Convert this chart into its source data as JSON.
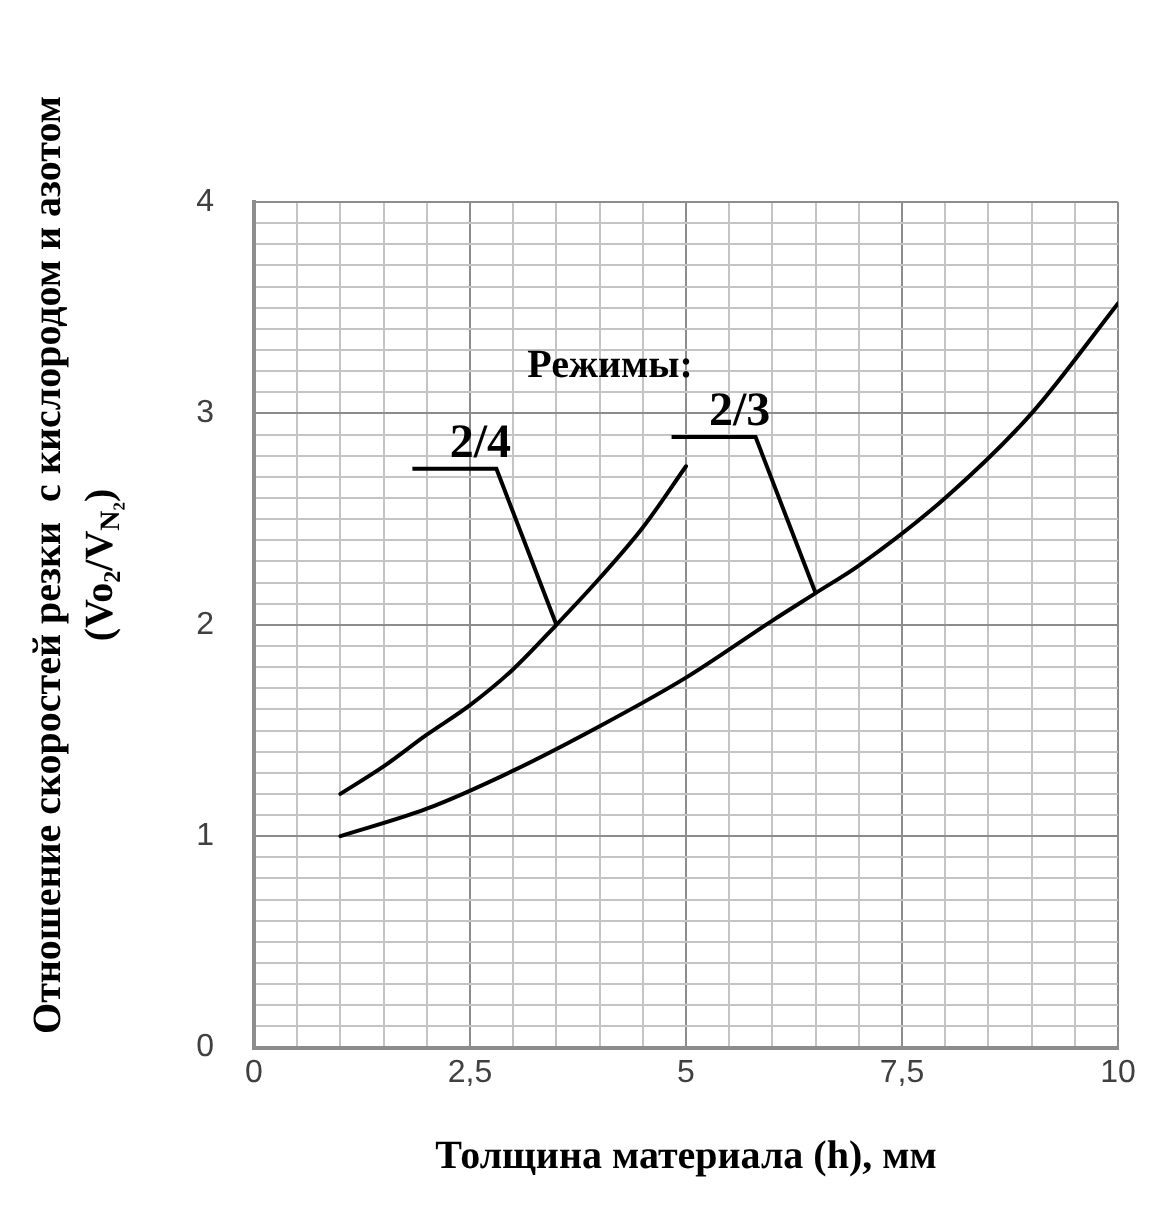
{
  "chart_data": {
    "type": "line",
    "xlabel": "Толщина материала (h), мм",
    "ylabel": "Отношение скоростей резки  с кислородом и азотом (Vo₂/V$_{N₂}$)",
    "series": [
      {
        "color": "#000000",
        "x": [
          1,
          1.5,
          2,
          2.5,
          3,
          3.5,
          4,
          4.5,
          5
        ],
        "values": [
          1.2,
          1.33,
          1.48,
          1.62,
          1.79,
          2.0,
          2.22,
          2.46,
          2.75
        ]
      },
      {
        "color": "#000000",
        "x": [
          1,
          2,
          3,
          4,
          5,
          6,
          6.5,
          7,
          8,
          9,
          10
        ],
        "values": [
          1.0,
          1.13,
          1.31,
          1.52,
          1.75,
          2.02,
          2.15,
          2.28,
          2.6,
          3.0,
          3.52
        ]
      }
    ],
    "xlim": [
      0,
      10
    ],
    "ylim": [
      0,
      4
    ],
    "xticks": [
      0,
      {
        "value": 0.5,
        "label": null
      },
      {
        "value": 1,
        "label": null
      },
      {
        "value": 1.5,
        "label": null
      },
      {
        "value": 2,
        "label": null
      },
      {
        "value": 2.5,
        "label": "2,5"
      },
      {
        "value": 3,
        "label": null
      },
      {
        "value": 3.5,
        "label": null
      },
      {
        "value": 4,
        "label": null
      },
      {
        "value": 4.5,
        "label": null
      },
      5,
      {
        "value": 5.5,
        "label": null
      },
      {
        "value": 6,
        "label": null
      },
      {
        "value": 6.5,
        "label": null
      },
      {
        "value": 7,
        "label": null
      },
      {
        "value": 7.5,
        "label": "7,5"
      },
      {
        "value": 8,
        "label": null
      },
      {
        "value": 8.5,
        "label": null
      },
      {
        "value": 9,
        "label": null
      },
      {
        "value": 9.5,
        "label": null
      },
      10
    ],
    "yticks": [
      0,
      {
        "value": 0.1,
        "label": null
      },
      {
        "value": 0.2,
        "label": null
      },
      {
        "value": 0.3,
        "label": null
      },
      {
        "value": 0.4,
        "label": null
      },
      {
        "value": 0.5,
        "label": null
      },
      {
        "value": 0.6,
        "label": null
      },
      {
        "value": 0.7,
        "label": null
      },
      {
        "value": 0.8,
        "label": null
      },
      {
        "value": 0.9,
        "label": null
      },
      1,
      {
        "value": 1.1,
        "label": null
      },
      {
        "value": 1.2,
        "label": null
      },
      {
        "value": 1.3,
        "label": null
      },
      {
        "value": 1.4,
        "label": null
      },
      {
        "value": 1.5,
        "label": null
      },
      {
        "value": 1.6,
        "label": null
      },
      {
        "value": 1.7,
        "label": null
      },
      {
        "value": 1.8,
        "label": null
      },
      {
        "value": 1.9,
        "label": null
      },
      2,
      {
        "value": 2.1,
        "label": null
      },
      {
        "value": 2.2,
        "label": null
      },
      {
        "value": 2.3,
        "label": null
      },
      {
        "value": 2.4,
        "label": null
      },
      {
        "value": 2.5,
        "label": null
      },
      {
        "value": 2.6,
        "label": null
      },
      {
        "value": 2.7,
        "label": null
      },
      {
        "value": 2.8,
        "label": null
      },
      {
        "value": 2.9,
        "label": null
      },
      3,
      {
        "value": 3.1,
        "label": null
      },
      {
        "value": 3.2,
        "label": null
      },
      {
        "value": 3.3,
        "label": null
      },
      {
        "value": 3.4,
        "label": null
      },
      {
        "value": 3.5,
        "label": null
      },
      {
        "value": 3.6,
        "label": null
      },
      {
        "value": 3.7,
        "label": null
      },
      {
        "value": 3.8,
        "label": null
      },
      {
        "value": 3.9,
        "label": null
      },
      4
    ],
    "grid": true,
    "legend": false,
    "marker": "none",
    "line_style": "solid",
    "annotations": [
      "Режимы:",
      {
        "text": "2/4",
        "x": 3.5,
        "y": 2.0
      },
      {
        "text": "2/3",
        "x": 6.5,
        "y": 2.15
      }
    ]
  }
}
